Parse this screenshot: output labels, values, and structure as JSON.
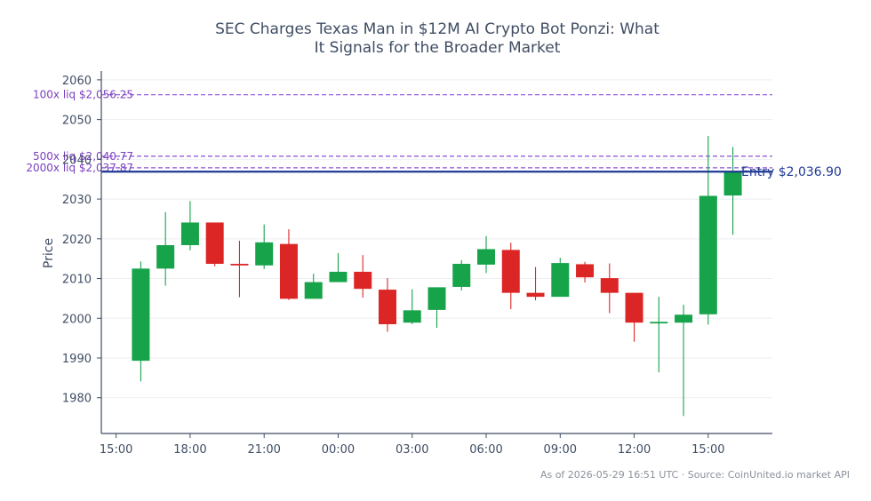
{
  "chart_data": {
    "type": "candlestick",
    "title_lines": [
      "SEC Charges Texas Man in $12M AI Crypto Bot Ponzi: What",
      "It Signals for the Broader Market"
    ],
    "ylabel": "Price",
    "xlabel": "",
    "ylim": [
      1971,
      2064
    ],
    "y_ticks": [
      1980,
      1990,
      2000,
      2010,
      2020,
      2030,
      2040,
      2050,
      2060
    ],
    "x_ticks": [
      {
        "hour": 15,
        "label": "15:00"
      },
      {
        "hour": 18,
        "label": "18:00"
      },
      {
        "hour": 21,
        "label": "21:00"
      },
      {
        "hour": 24,
        "label": "00:00"
      },
      {
        "hour": 27,
        "label": "03:00"
      },
      {
        "hour": 30,
        "label": "06:00"
      },
      {
        "hour": 33,
        "label": "09:00"
      },
      {
        "hour": 36,
        "label": "12:00"
      },
      {
        "hour": 39,
        "label": "15:00"
      }
    ],
    "xlim": [
      14.4,
      41.6
    ],
    "grid": true,
    "colors": {
      "up": "#16a34a",
      "down": "#dc2626",
      "reference": "#8b4fd6",
      "entry": "#1f3a93",
      "axis": "#3f4d63",
      "grid": "#eceef1"
    },
    "candles": [
      {
        "hour": 16,
        "open": 1989.3,
        "high": 2014.3,
        "low": 1984.1,
        "close": 2012.5
      },
      {
        "hour": 17,
        "open": 2012.5,
        "high": 2026.7,
        "low": 2008.2,
        "close": 2018.4
      },
      {
        "hour": 18,
        "open": 2018.4,
        "high": 2029.5,
        "low": 2017.1,
        "close": 2024.1
      },
      {
        "hour": 19,
        "open": 2024.1,
        "high": 2024.1,
        "low": 2013.1,
        "close": 2013.7
      },
      {
        "hour": 20,
        "open": 2013.7,
        "high": 2019.5,
        "low": 2005.3,
        "close": 2013.3
      },
      {
        "hour": 21,
        "open": 2013.3,
        "high": 2023.6,
        "low": 2012.4,
        "close": 2019.1
      },
      {
        "hour": 22,
        "open": 2018.7,
        "high": 2022.4,
        "low": 2004.6,
        "close": 2004.9
      },
      {
        "hour": 23,
        "open": 2004.9,
        "high": 2011.2,
        "low": 2004.9,
        "close": 2009.1
      },
      {
        "hour": 24,
        "open": 2009.1,
        "high": 2016.4,
        "low": 2009.1,
        "close": 2011.7
      },
      {
        "hour": 25,
        "open": 2011.7,
        "high": 2015.9,
        "low": 2005.2,
        "close": 2007.4
      },
      {
        "hour": 26,
        "open": 2007.2,
        "high": 2010.1,
        "low": 1996.6,
        "close": 1998.5
      },
      {
        "hour": 27,
        "open": 1998.9,
        "high": 2007.3,
        "low": 1998.5,
        "close": 2002.0
      },
      {
        "hour": 28,
        "open": 2002.1,
        "high": 2007.8,
        "low": 1997.6,
        "close": 2007.8
      },
      {
        "hour": 29,
        "open": 2007.9,
        "high": 2014.6,
        "low": 2007.0,
        "close": 2013.7
      },
      {
        "hour": 30,
        "open": 2013.5,
        "high": 2020.7,
        "low": 2011.4,
        "close": 2017.4
      },
      {
        "hour": 31,
        "open": 2017.2,
        "high": 2019.0,
        "low": 2002.3,
        "close": 2006.4
      },
      {
        "hour": 32,
        "open": 2006.4,
        "high": 2012.9,
        "low": 2004.5,
        "close": 2005.4
      },
      {
        "hour": 33,
        "open": 2005.4,
        "high": 2015.2,
        "low": 2005.4,
        "close": 2013.9
      },
      {
        "hour": 34,
        "open": 2013.6,
        "high": 2014.2,
        "low": 2009.0,
        "close": 2010.3
      },
      {
        "hour": 35,
        "open": 2010.1,
        "high": 2013.8,
        "low": 2001.3,
        "close": 2006.4
      },
      {
        "hour": 36,
        "open": 2006.4,
        "high": 2006.4,
        "low": 1994.1,
        "close": 1998.9
      },
      {
        "hour": 37,
        "open": 1998.7,
        "high": 2005.4,
        "low": 1986.4,
        "close": 1999.1
      },
      {
        "hour": 38,
        "open": 1998.9,
        "high": 2003.4,
        "low": 1975.4,
        "close": 2000.9
      },
      {
        "hour": 39,
        "open": 2001.0,
        "high": 2045.9,
        "low": 1998.4,
        "close": 2030.8
      },
      {
        "hour": 40,
        "open": 2030.9,
        "high": 2043.1,
        "low": 2021.0,
        "close": 2037.0
      }
    ],
    "reference_lines": [
      {
        "label": "100x liq $2,056.25",
        "value": 2056.25
      },
      {
        "label": "500x liq $2,040.77",
        "value": 2040.77
      },
      {
        "label": "2000x liq $2,037.87",
        "value": 2037.87
      }
    ],
    "entry_line": {
      "label": "Entry $2,036.90",
      "value": 2036.9
    },
    "footer": "As of 2026-05-29 16:51 UTC · Source: CoinUnited.io market API"
  }
}
